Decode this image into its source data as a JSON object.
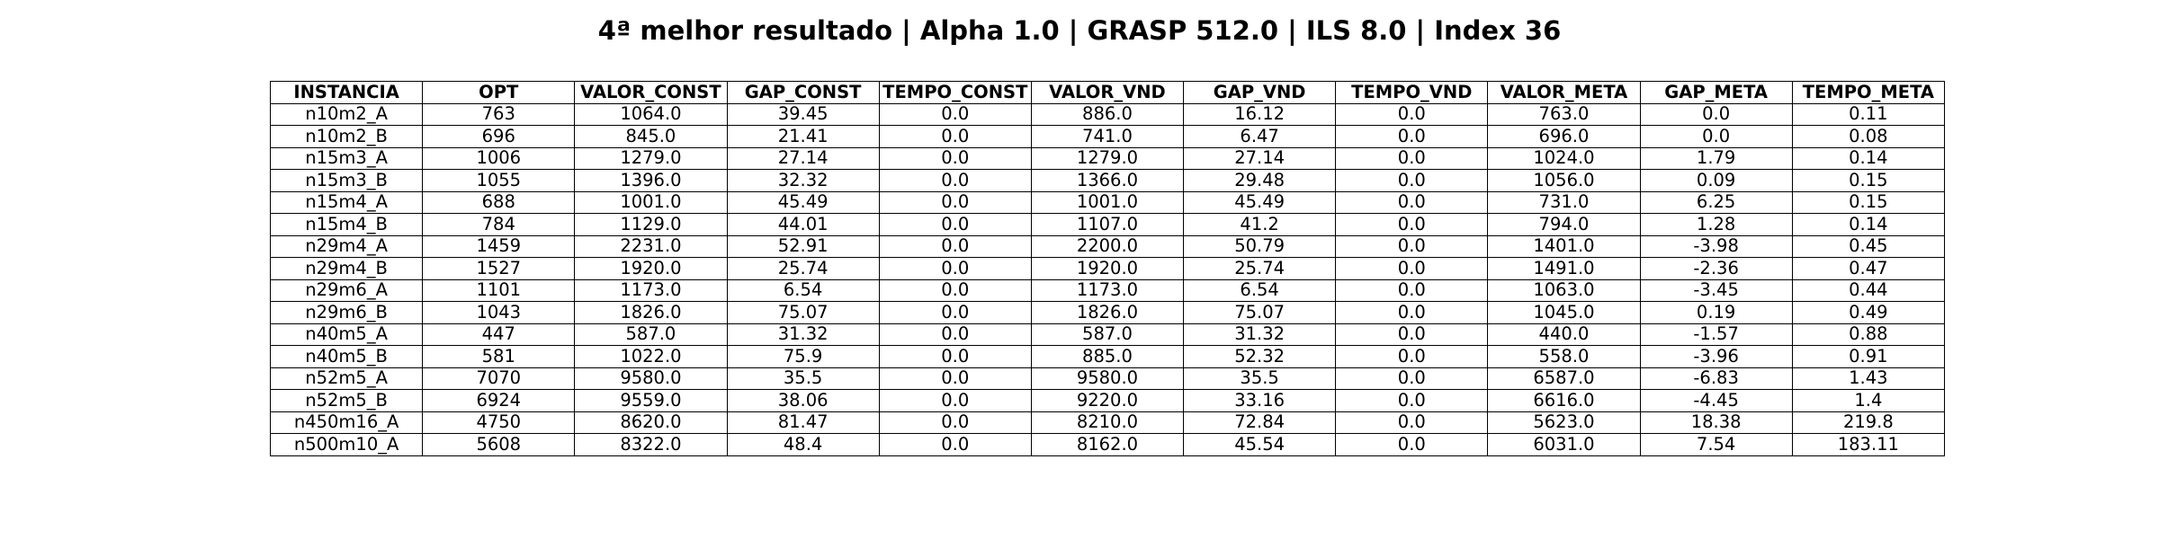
{
  "figure": {
    "title": "4ª melhor resultado | Alpha 1.0 | GRASP 512.0 | ILS 8.0 | Index 36"
  },
  "chart_data": {
    "type": "table",
    "title": "4ª melhor resultado | Alpha 1.0 | GRASP 512.0 | ILS 8.0 | Index 36",
    "columns": [
      "INSTANCIA",
      "OPT",
      "VALOR_CONST",
      "GAP_CONST",
      "TEMPO_CONST",
      "VALOR_VND",
      "GAP_VND",
      "TEMPO_VND",
      "VALOR_META",
      "GAP_META",
      "TEMPO_META"
    ],
    "rows": [
      [
        "n10m2_A",
        "763",
        "1064.0",
        "39.45",
        "0.0",
        "886.0",
        "16.12",
        "0.0",
        "763.0",
        "0.0",
        "0.11"
      ],
      [
        "n10m2_B",
        "696",
        "845.0",
        "21.41",
        "0.0",
        "741.0",
        "6.47",
        "0.0",
        "696.0",
        "0.0",
        "0.08"
      ],
      [
        "n15m3_A",
        "1006",
        "1279.0",
        "27.14",
        "0.0",
        "1279.0",
        "27.14",
        "0.0",
        "1024.0",
        "1.79",
        "0.14"
      ],
      [
        "n15m3_B",
        "1055",
        "1396.0",
        "32.32",
        "0.0",
        "1366.0",
        "29.48",
        "0.0",
        "1056.0",
        "0.09",
        "0.15"
      ],
      [
        "n15m4_A",
        "688",
        "1001.0",
        "45.49",
        "0.0",
        "1001.0",
        "45.49",
        "0.0",
        "731.0",
        "6.25",
        "0.15"
      ],
      [
        "n15m4_B",
        "784",
        "1129.0",
        "44.01",
        "0.0",
        "1107.0",
        "41.2",
        "0.0",
        "794.0",
        "1.28",
        "0.14"
      ],
      [
        "n29m4_A",
        "1459",
        "2231.0",
        "52.91",
        "0.0",
        "2200.0",
        "50.79",
        "0.0",
        "1401.0",
        "-3.98",
        "0.45"
      ],
      [
        "n29m4_B",
        "1527",
        "1920.0",
        "25.74",
        "0.0",
        "1920.0",
        "25.74",
        "0.0",
        "1491.0",
        "-2.36",
        "0.47"
      ],
      [
        "n29m6_A",
        "1101",
        "1173.0",
        "6.54",
        "0.0",
        "1173.0",
        "6.54",
        "0.0",
        "1063.0",
        "-3.45",
        "0.44"
      ],
      [
        "n29m6_B",
        "1043",
        "1826.0",
        "75.07",
        "0.0",
        "1826.0",
        "75.07",
        "0.0",
        "1045.0",
        "0.19",
        "0.49"
      ],
      [
        "n40m5_A",
        "447",
        "587.0",
        "31.32",
        "0.0",
        "587.0",
        "31.32",
        "0.0",
        "440.0",
        "-1.57",
        "0.88"
      ],
      [
        "n40m5_B",
        "581",
        "1022.0",
        "75.9",
        "0.0",
        "885.0",
        "52.32",
        "0.0",
        "558.0",
        "-3.96",
        "0.91"
      ],
      [
        "n52m5_A",
        "7070",
        "9580.0",
        "35.5",
        "0.0",
        "9580.0",
        "35.5",
        "0.0",
        "6587.0",
        "-6.83",
        "1.43"
      ],
      [
        "n52m5_B",
        "6924",
        "9559.0",
        "38.06",
        "0.0",
        "9220.0",
        "33.16",
        "0.0",
        "6616.0",
        "-4.45",
        "1.4"
      ],
      [
        "n450m16_A",
        "4750",
        "8620.0",
        "81.47",
        "0.0",
        "8210.0",
        "72.84",
        "0.0",
        "5623.0",
        "18.38",
        "219.8"
      ],
      [
        "n500m10_A",
        "5608",
        "8322.0",
        "48.4",
        "0.0",
        "8162.0",
        "45.54",
        "0.0",
        "6031.0",
        "7.54",
        "183.11"
      ]
    ]
  }
}
